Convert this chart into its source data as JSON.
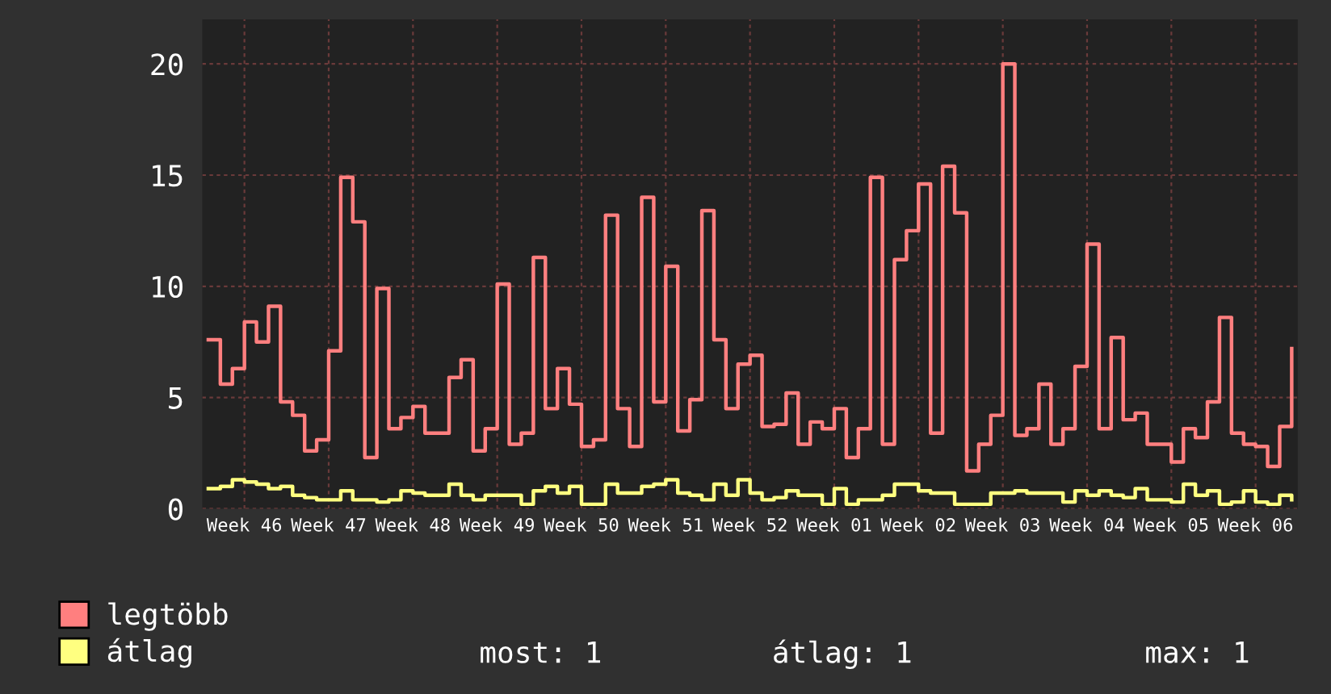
{
  "chart_data": {
    "type": "step",
    "categories": [
      null,
      null,
      null,
      "Week 46",
      null,
      null,
      null,
      null,
      null,
      null,
      "Week 47",
      null,
      null,
      null,
      null,
      null,
      null,
      "Week 48",
      null,
      null,
      null,
      null,
      null,
      null,
      "Week 49",
      null,
      null,
      null,
      null,
      null,
      null,
      "Week 50",
      null,
      null,
      null,
      null,
      null,
      null,
      "Week 51",
      null,
      null,
      null,
      null,
      null,
      null,
      "Week 52",
      null,
      null,
      null,
      null,
      null,
      null,
      "Week 01",
      null,
      null,
      null,
      null,
      null,
      null,
      "Week 02",
      null,
      null,
      null,
      null,
      null,
      null,
      "Week 03",
      null,
      null,
      null,
      null,
      null,
      null,
      "Week 04",
      null,
      null,
      null,
      null,
      null,
      null,
      "Week 05",
      null,
      null,
      null,
      null,
      null,
      null,
      "Week 06",
      null,
      null,
      null
    ],
    "series": [
      {
        "name": "legtöbb",
        "color": "#ff7f7f",
        "values": [
          7.6,
          5.6,
          6.3,
          8.4,
          7.5,
          9.1,
          4.8,
          4.2,
          2.6,
          3.1,
          7.1,
          14.9,
          12.9,
          2.3,
          9.9,
          3.6,
          4.1,
          4.6,
          3.4,
          3.4,
          5.9,
          6.7,
          2.6,
          3.6,
          10.1,
          2.9,
          3.4,
          11.3,
          4.5,
          6.3,
          4.7,
          2.8,
          3.1,
          13.2,
          4.5,
          2.8,
          14.0,
          4.8,
          10.9,
          3.5,
          4.9,
          13.4,
          7.6,
          4.5,
          6.5,
          6.9,
          3.7,
          3.8,
          5.2,
          2.9,
          3.9,
          3.6,
          4.5,
          2.3,
          3.6,
          14.9,
          2.9,
          11.2,
          12.5,
          14.6,
          3.4,
          15.4,
          13.3,
          1.7,
          2.9,
          4.2,
          20.0,
          3.3,
          3.6,
          5.6,
          2.9,
          3.6,
          6.4,
          11.9,
          3.6,
          7.7,
          4.0,
          4.3,
          2.9,
          2.9,
          2.1,
          3.6,
          3.2,
          4.8,
          8.6,
          3.4,
          2.9,
          2.8,
          1.9,
          3.7,
          7.2
        ]
      },
      {
        "name": "átlag",
        "color": "#ffff80",
        "values": [
          0.9,
          1.0,
          1.3,
          1.2,
          1.1,
          0.9,
          1.0,
          0.6,
          0.5,
          0.4,
          0.4,
          0.8,
          0.4,
          0.4,
          0.3,
          0.4,
          0.8,
          0.7,
          0.6,
          0.6,
          1.1,
          0.6,
          0.4,
          0.6,
          0.6,
          0.6,
          0.2,
          0.8,
          1.0,
          0.7,
          1.0,
          0.2,
          0.2,
          1.1,
          0.7,
          0.7,
          1.0,
          1.1,
          1.3,
          0.7,
          0.6,
          0.4,
          1.1,
          0.6,
          1.3,
          0.7,
          0.4,
          0.5,
          0.8,
          0.6,
          0.6,
          0.2,
          0.9,
          0.2,
          0.4,
          0.4,
          0.6,
          1.1,
          1.1,
          0.8,
          0.7,
          0.7,
          0.2,
          0.2,
          0.2,
          0.7,
          0.7,
          0.8,
          0.7,
          0.7,
          0.7,
          0.3,
          0.8,
          0.6,
          0.8,
          0.6,
          0.5,
          0.9,
          0.4,
          0.4,
          0.3,
          1.1,
          0.6,
          0.8,
          0.2,
          0.3,
          0.8,
          0.3,
          0.2,
          0.6,
          0.4
        ]
      }
    ],
    "ylim": [
      0,
      22
    ],
    "yticks": [
      0,
      5,
      10,
      15,
      20
    ],
    "grid": true,
    "legend": "bottom left",
    "annotations": [
      "most: 1",
      "átlag: 1",
      "max: 1"
    ]
  }
}
